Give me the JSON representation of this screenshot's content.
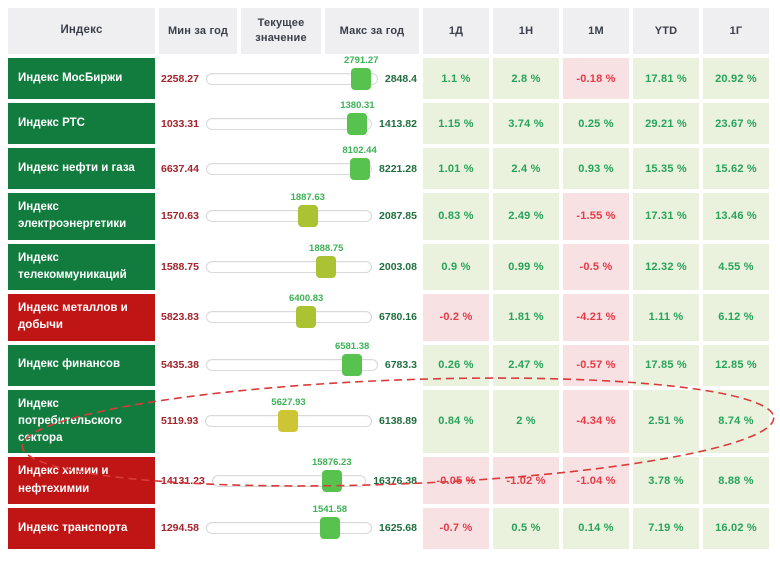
{
  "table": {
    "headers": {
      "index": "Индекс",
      "min": "Мин за год",
      "current": "Текущее значение",
      "max": "Макс за год",
      "periods": [
        "1Д",
        "1Н",
        "1М",
        "YTD",
        "1Г"
      ]
    }
  },
  "chart_data": {
    "type": "table",
    "columns": [
      "Индекс",
      "Мин за год",
      "Текущее значение",
      "Макс за год",
      "1Д",
      "1Н",
      "1М",
      "YTD",
      "1Г"
    ],
    "rows": [
      {
        "name": "Индекс МосБиржи",
        "tone": "green",
        "min": 2258.27,
        "current": 2791.27,
        "max": 2848.4,
        "thumb": "green",
        "changes": [
          "1.1 %",
          "2.8 %",
          "-0.18 %",
          "17.81 %",
          "20.92 %"
        ]
      },
      {
        "name": "Индекс РТС",
        "tone": "green",
        "min": 1033.31,
        "current": 1380.31,
        "max": 1413.82,
        "thumb": "green",
        "changes": [
          "1.15 %",
          "3.74 %",
          "0.25 %",
          "29.21 %",
          "23.67 %"
        ]
      },
      {
        "name": "Индекс нефти и газа",
        "tone": "green",
        "min": 6637.44,
        "current": 8102.44,
        "max": 8221.28,
        "thumb": "green",
        "changes": [
          "1.01 %",
          "2.4 %",
          "0.93 %",
          "15.35 %",
          "15.62 %"
        ]
      },
      {
        "name": "Индекс электроэнергетики",
        "tone": "green",
        "min": 1570.63,
        "current": 1887.63,
        "max": 2087.85,
        "thumb": "olive",
        "changes": [
          "0.83 %",
          "2.49 %",
          "-1.55 %",
          "17.31 %",
          "13.46 %"
        ]
      },
      {
        "name": "Индекс телекоммуникаций",
        "tone": "green",
        "min": 1588.75,
        "current": 1888.75,
        "max": 2003.08,
        "thumb": "olive",
        "changes": [
          "0.9 %",
          "0.99 %",
          "-0.5 %",
          "12.32 %",
          "4.55 %"
        ]
      },
      {
        "name": "Индекс металлов и добычи",
        "tone": "red",
        "min": 5823.83,
        "current": 6400.83,
        "max": 6780.16,
        "thumb": "olive",
        "changes": [
          "-0.2 %",
          "1.81 %",
          "-4.21 %",
          "1.11 %",
          "6.12 %"
        ]
      },
      {
        "name": "Индекс финансов",
        "tone": "green",
        "min": 5435.38,
        "current": 6581.38,
        "max": 6783.3,
        "thumb": "green",
        "changes": [
          "0.26 %",
          "2.47 %",
          "-0.57 %",
          "17.85 %",
          "12.85 %"
        ]
      },
      {
        "name": "Индекс потребительского сектора",
        "tone": "green",
        "min": 5119.93,
        "current": 5627.93,
        "max": 6138.89,
        "thumb": "yellow",
        "changes": [
          "0.84 %",
          "2 %",
          "-4.34 %",
          "2.51 %",
          "8.74 %"
        ]
      },
      {
        "name": "Индекс химии и нефтехимии",
        "tone": "red",
        "min": 14131.23,
        "current": 15876.23,
        "max": 16376.38,
        "thumb": "green",
        "changes": [
          "-0.05 %",
          "-1.02 %",
          "-1.04 %",
          "3.78 %",
          "8.88 %"
        ]
      },
      {
        "name": "Индекс транспорта",
        "tone": "red",
        "min": 1294.58,
        "current": 1541.58,
        "max": 1625.68,
        "thumb": "green",
        "changes": [
          "-0.7 %",
          "0.5 %",
          "0.14 %",
          "7.19 %",
          "16.02 %"
        ]
      }
    ]
  },
  "annotation": {
    "shape": "dashed-ellipse",
    "color": "#d93a3a",
    "highlighted_row": "Индекс потребительского сектора"
  },
  "colors": {
    "header_bg": "#efeff1",
    "name_green": "#127c3f",
    "name_red": "#c01515",
    "positive_bg": "#eaf2de",
    "positive_text": "#27a35a",
    "negative_bg": "#f8e1e3",
    "negative_text": "#e63a46",
    "min_text": "#a3242c",
    "max_text": "#206e3f",
    "current_text": "#3db156",
    "thumb": {
      "green": "#57c34e",
      "olive": "#abc233",
      "yellow": "#cdc534"
    }
  }
}
